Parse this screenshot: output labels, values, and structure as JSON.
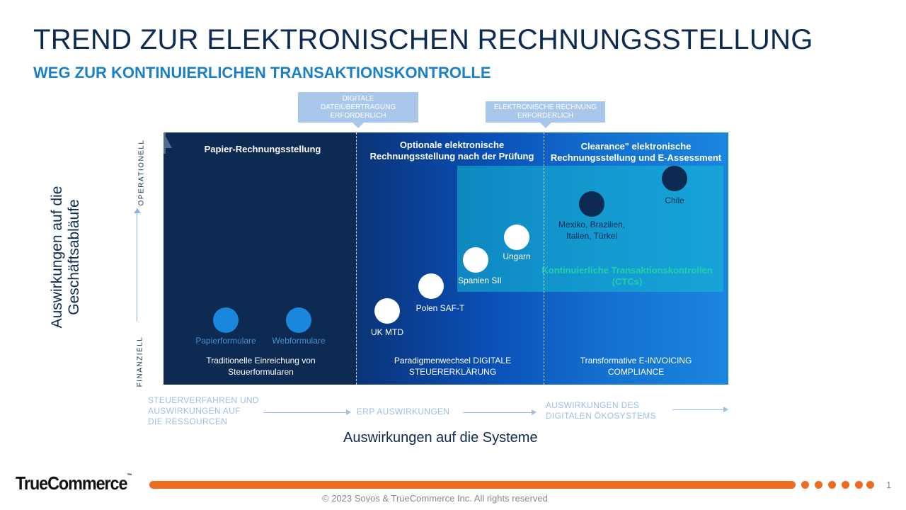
{
  "slide": {
    "title": "TREND ZUR ELEKTRONISCHEN RECHNUNGSSTELLUNG",
    "subtitle": "WEG ZUR KONTINUIERLICHEN TRANSAKTIONSKONTROLLE"
  },
  "callouts": {
    "digital_file": "DIGITALE\nDATEIÜBERTRAGUNG\nERFORDERLICH",
    "e_invoice": "ELEKTRONISCHE RECHNUNG\nERFORDERLICH"
  },
  "sections": {
    "paper": {
      "header": "Papier-Rechnungsstellung",
      "footer": "Traditionelle Einreichung von\nSteuerformularen"
    },
    "optional": {
      "header": "Optionale elektronische\nRechnungsstellung nach der Prüfung",
      "footer": "Paradigmenwechsel DIGITALE\nSTEUERERKLÄRUNG"
    },
    "clearance": {
      "header": "Clearance\" elektronische\nRechnungsstellung und  E-Assessment",
      "footer": "Transformative  E-INVOICING\nCOMPLIANCE"
    }
  },
  "ctc_label": "Kontinuierliche Transaktionskontrollen\n(CTCs)",
  "points": [
    {
      "id": "papierformulare",
      "label": "Papierformulare",
      "style": "blue"
    },
    {
      "id": "webformulare",
      "label": "Webformulare",
      "style": "blue"
    },
    {
      "id": "uk-mtd",
      "label": "UK MTD",
      "style": "white"
    },
    {
      "id": "polen",
      "label": "Polen SAF-T",
      "style": "white"
    },
    {
      "id": "spanien",
      "label": "Spanien SII",
      "style": "white"
    },
    {
      "id": "ungarn",
      "label": "Ungarn",
      "style": "white"
    },
    {
      "id": "mexiko",
      "label": "Mexiko, Brazilien,\nItalien, Türkei",
      "style": "navy"
    },
    {
      "id": "chile",
      "label": "Chile",
      "style": "navy"
    }
  ],
  "axes": {
    "y_title": "Auswirkungen auf die\nGeschäftsabläufe",
    "y_top": "OPERATIONELL",
    "y_bottom": "FINANZIELL",
    "x_title": "Auswirkungen auf die Systeme",
    "x_stages": [
      "STEUERVERFAHREN UND\nAUSWIRKUNGEN AUF\nDIE RESSOURCEN",
      "ERP AUSWIRKUNGEN",
      "AUSWIRKUNGEN DES\nDIGITALEN ÖKOSYSTEMS"
    ]
  },
  "footer": {
    "logo": "TrueCommerce",
    "logo_tm": "™",
    "copyright": "© 2023 Sovos & TrueCommerce Inc. All rights reserved",
    "page_number": "1"
  },
  "colors": {
    "title": "#0d2b52",
    "subtitle": "#1b80c8",
    "accent_orange": "#ee6c20",
    "dot_blue": "#1a86dc",
    "dot_navy": "#0c2a52",
    "ctc_text": "#1fd0a8"
  }
}
